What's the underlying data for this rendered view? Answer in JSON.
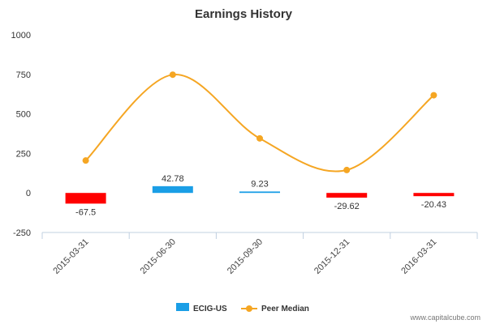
{
  "chart_data": {
    "type": "bar",
    "title": "Earnings History",
    "xlabel": "",
    "ylabel": "",
    "ylim": [
      -250,
      1000
    ],
    "yticks": [
      1000,
      750,
      500,
      250,
      0,
      -250
    ],
    "categories": [
      "2015-03-31",
      "2015-06-30",
      "2015-09-30",
      "2015-12-31",
      "2016-03-31"
    ],
    "series": [
      {
        "name": "ECIG-US",
        "type": "bar",
        "values": [
          -67.5,
          42.78,
          9.23,
          -29.62,
          -20.43
        ],
        "labels": [
          "-67.5",
          "42.78",
          "9.23",
          "-29.62",
          "-20.43"
        ],
        "color_positive": "#1a9ee6",
        "color_negative": "#ff0000"
      },
      {
        "name": "Peer Median",
        "type": "line",
        "values": [
          205,
          748,
          345,
          145,
          618
        ],
        "color": "#f5a623"
      }
    ],
    "grid": false,
    "legend_position": "bottom-center"
  },
  "watermark": "www.capitalcube.com"
}
